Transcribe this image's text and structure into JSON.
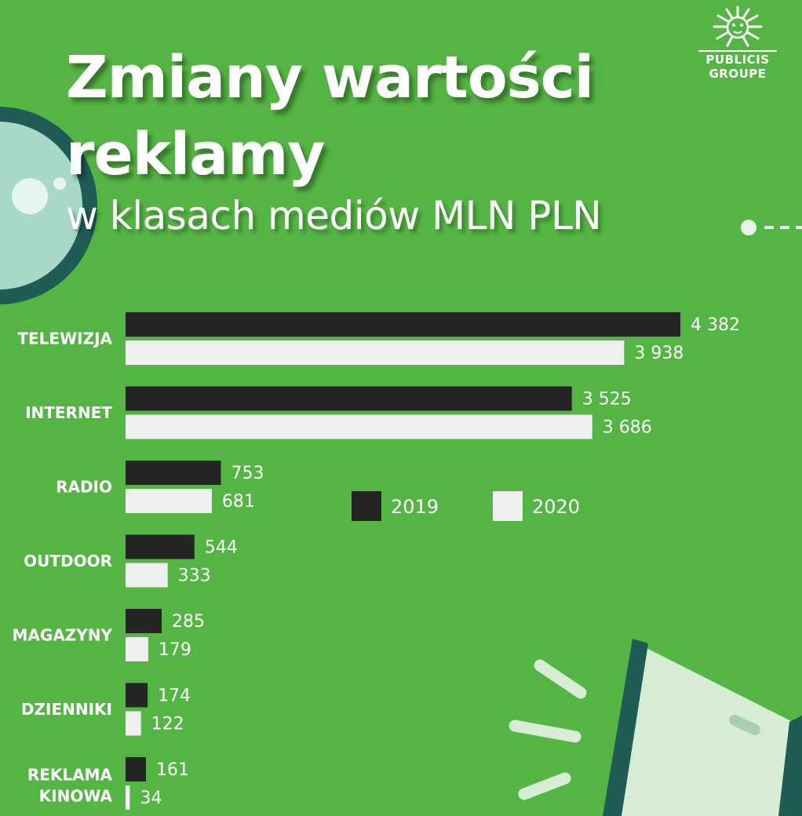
{
  "header": {
    "title_line1": "Zmiany wartości",
    "title_line2": "reklamy",
    "subtitle": "w klasach mediów MLN PLN"
  },
  "logo": {
    "line1": "PUBLICIS",
    "line2": "GROUPE",
    "icon": "lion-head-icon"
  },
  "colors": {
    "background": "#55b544",
    "bar_2019": "#252525",
    "bar_2020": "#efefef",
    "text": "#ffffff",
    "category_text": "#ffffff",
    "deco_dark": "#1f5c55",
    "deco_light": "#a8d8c8"
  },
  "decorations": [
    "magnifier-icon",
    "megaphone-icon"
  ],
  "chart_data": {
    "type": "bar",
    "orientation": "horizontal",
    "categories": [
      "TELEWIZJA",
      "INTERNET",
      "RADIO",
      "OUTDOOR",
      "MAGAZYNY",
      "DZIENNIKI",
      "REKLAMA KINOWA"
    ],
    "series": [
      {
        "name": "2019",
        "values": [
          4382,
          3525,
          753,
          544,
          285,
          174,
          161
        ],
        "labels": [
          "4 382",
          "3 525",
          "753",
          "544",
          "285",
          "174",
          "161"
        ]
      },
      {
        "name": "2020",
        "values": [
          3938,
          3686,
          681,
          333,
          179,
          122,
          34
        ],
        "labels": [
          "3 938",
          "3 686",
          "681",
          "333",
          "179",
          "122",
          "34"
        ]
      }
    ],
    "legend_position": "right-middle",
    "grid": false,
    "xlim": [
      0,
      4382
    ]
  }
}
